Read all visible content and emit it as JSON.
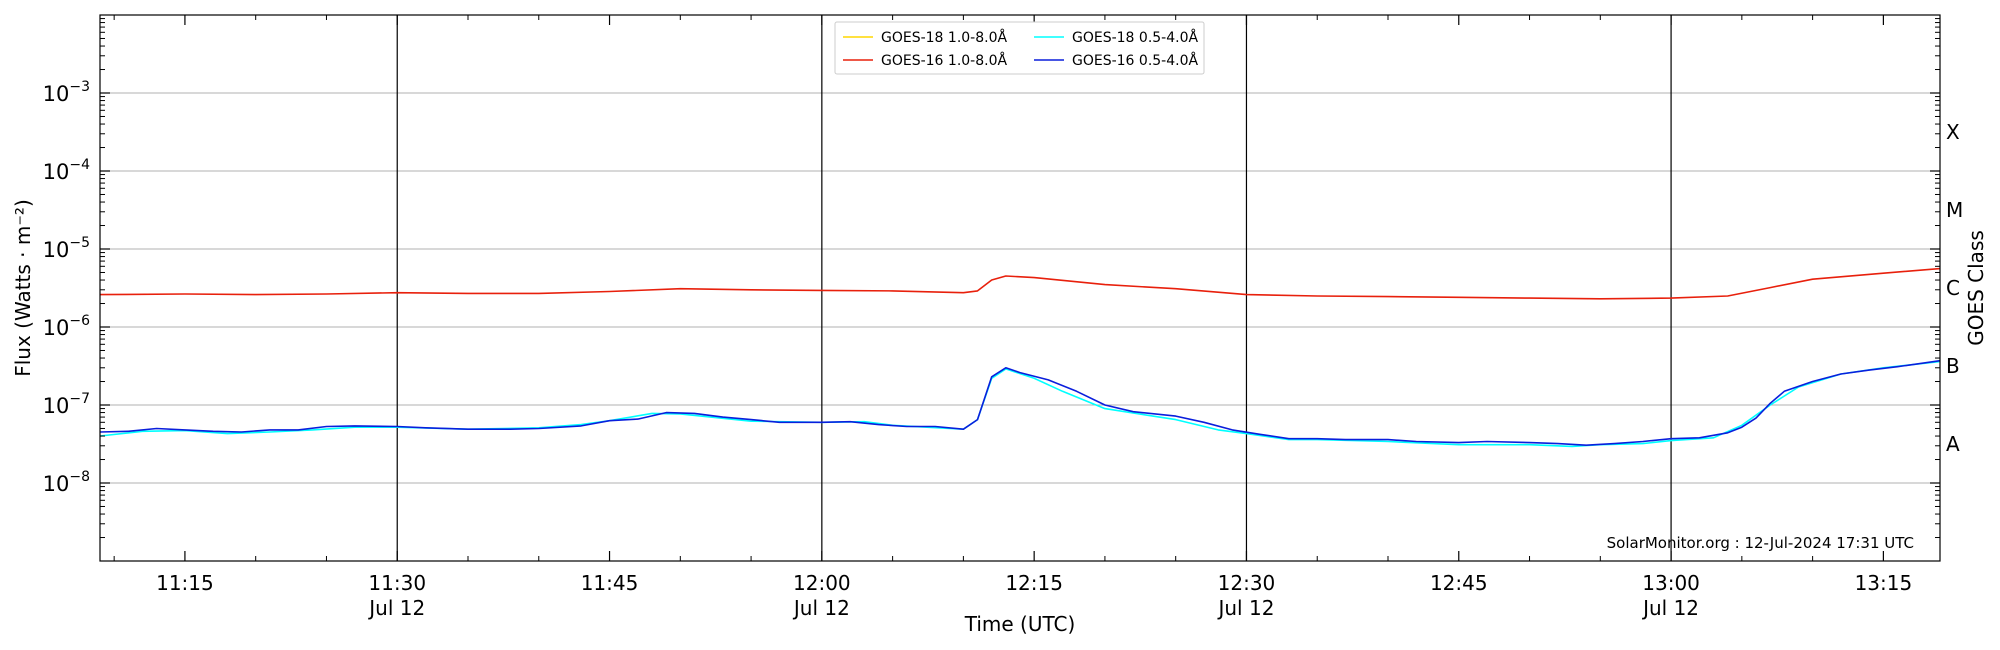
{
  "chart_data": {
    "type": "line",
    "xlabel": "Time (UTC)",
    "ylabel": "Flux (Watts · m⁻²)",
    "y2label": "GOES Class",
    "yscale": "log",
    "ylim": [
      1e-09,
      0.01
    ],
    "x_start": "11:09",
    "x_end": "13:19",
    "xticks": [
      {
        "label": "11:15",
        "sub": ""
      },
      {
        "label": "11:30",
        "sub": "Jul 12"
      },
      {
        "label": "11:45",
        "sub": ""
      },
      {
        "label": "12:00",
        "sub": "Jul 12"
      },
      {
        "label": "12:15",
        "sub": ""
      },
      {
        "label": "12:30",
        "sub": "Jul 12"
      },
      {
        "label": "12:45",
        "sub": ""
      },
      {
        "label": "13:00",
        "sub": "Jul 12"
      },
      {
        "label": "13:15",
        "sub": ""
      }
    ],
    "yticks": [
      {
        "base": "10",
        "exp": "−3",
        "value": 0.001
      },
      {
        "base": "10",
        "exp": "−4",
        "value": 0.0001
      },
      {
        "base": "10",
        "exp": "−5",
        "value": 1e-05
      },
      {
        "base": "10",
        "exp": "−6",
        "value": 1e-06
      },
      {
        "base": "10",
        "exp": "−7",
        "value": 1e-07
      },
      {
        "base": "10",
        "exp": "−8",
        "value": 1e-08
      }
    ],
    "classes": [
      {
        "label": "X",
        "value": 0.000316
      },
      {
        "label": "M",
        "value": 3.16e-05
      },
      {
        "label": "C",
        "value": 3.16e-06
      },
      {
        "label": "B",
        "value": 3.16e-07
      },
      {
        "label": "A",
        "value": 3.16e-08
      }
    ],
    "vlines": [
      "11:30",
      "12:00",
      "12:30",
      "13:00"
    ],
    "grid": "horizontal",
    "legend_position": "top-center",
    "annotation": "SolarMonitor.org : 12-Jul-2024 17:31 UTC",
    "series": [
      {
        "name": "GOES-18 1.0-8.0Å",
        "color": "#ffd700",
        "points": []
      },
      {
        "name": "GOES-16 1.0-8.0Å",
        "color": "#e8200c",
        "points": [
          [
            "11:09",
            2.6e-06
          ],
          [
            "11:15",
            2.65e-06
          ],
          [
            "11:20",
            2.6e-06
          ],
          [
            "11:25",
            2.65e-06
          ],
          [
            "11:30",
            2.75e-06
          ],
          [
            "11:35",
            2.7e-06
          ],
          [
            "11:40",
            2.7e-06
          ],
          [
            "11:45",
            2.85e-06
          ],
          [
            "11:50",
            3.1e-06
          ],
          [
            "11:55",
            3e-06
          ],
          [
            "12:00",
            2.95e-06
          ],
          [
            "12:05",
            2.9e-06
          ],
          [
            "12:10",
            2.75e-06
          ],
          [
            "12:11",
            2.9e-06
          ],
          [
            "12:12",
            4e-06
          ],
          [
            "12:13",
            4.5e-06
          ],
          [
            "12:15",
            4.3e-06
          ],
          [
            "12:20",
            3.5e-06
          ],
          [
            "12:25",
            3.1e-06
          ],
          [
            "12:30",
            2.6e-06
          ],
          [
            "12:35",
            2.5e-06
          ],
          [
            "12:40",
            2.45e-06
          ],
          [
            "12:45",
            2.4e-06
          ],
          [
            "12:50",
            2.35e-06
          ],
          [
            "12:55",
            2.3e-06
          ],
          [
            "13:00",
            2.35e-06
          ],
          [
            "13:04",
            2.5e-06
          ],
          [
            "13:07",
            3.2e-06
          ],
          [
            "13:10",
            4.1e-06
          ],
          [
            "13:15",
            4.9e-06
          ],
          [
            "13:19",
            5.6e-06
          ]
        ]
      },
      {
        "name": "GOES-18 0.5-4.0Å",
        "color": "#00ffff",
        "points": [
          [
            "11:09",
            4e-08
          ],
          [
            "11:12",
            4.6e-08
          ],
          [
            "11:15",
            4.7e-08
          ],
          [
            "11:18",
            4.3e-08
          ],
          [
            "11:21",
            4.5e-08
          ],
          [
            "11:24",
            4.8e-08
          ],
          [
            "11:27",
            5.2e-08
          ],
          [
            "11:30",
            5.2e-08
          ],
          [
            "11:35",
            4.9e-08
          ],
          [
            "11:40",
            5.1e-08
          ],
          [
            "11:43",
            5.6e-08
          ],
          [
            "11:45",
            6.3e-08
          ],
          [
            "11:48",
            7.8e-08
          ],
          [
            "11:50",
            7.7e-08
          ],
          [
            "11:55",
            6.2e-08
          ],
          [
            "12:00",
            6e-08
          ],
          [
            "12:03",
            6.1e-08
          ],
          [
            "12:05",
            5.5e-08
          ],
          [
            "12:10",
            4.9e-08
          ],
          [
            "12:11",
            6.5e-08
          ],
          [
            "12:12",
            2.2e-07
          ],
          [
            "12:13",
            2.9e-07
          ],
          [
            "12:15",
            2.2e-07
          ],
          [
            "12:17",
            1.5e-07
          ],
          [
            "12:20",
            9e-08
          ],
          [
            "12:25",
            6.5e-08
          ],
          [
            "12:28",
            4.8e-08
          ],
          [
            "12:30",
            4.3e-08
          ],
          [
            "12:33",
            3.6e-08
          ],
          [
            "12:35",
            3.6e-08
          ],
          [
            "12:40",
            3.4e-08
          ],
          [
            "12:45",
            3.1e-08
          ],
          [
            "12:50",
            3.1e-08
          ],
          [
            "12:53",
            2.95e-08
          ],
          [
            "12:55",
            3.1e-08
          ],
          [
            "12:58",
            3.2e-08
          ],
          [
            "13:00",
            3.5e-08
          ],
          [
            "13:03",
            3.8e-08
          ],
          [
            "13:05",
            5.5e-08
          ],
          [
            "13:07",
            1e-07
          ],
          [
            "13:09",
            1.7e-07
          ],
          [
            "13:12",
            2.5e-07
          ],
          [
            "13:15",
            3e-07
          ],
          [
            "13:19",
            3.6e-07
          ]
        ]
      },
      {
        "name": "GOES-16 0.5-4.0Å",
        "color": "#0a1edc",
        "points": [
          [
            "11:09",
            4.5e-08
          ],
          [
            "11:11",
            4.6e-08
          ],
          [
            "11:13",
            5e-08
          ],
          [
            "11:15",
            4.8e-08
          ],
          [
            "11:17",
            4.6e-08
          ],
          [
            "11:19",
            4.5e-08
          ],
          [
            "11:21",
            4.8e-08
          ],
          [
            "11:23",
            4.8e-08
          ],
          [
            "11:25",
            5.3e-08
          ],
          [
            "11:27",
            5.4e-08
          ],
          [
            "11:30",
            5.3e-08
          ],
          [
            "11:32",
            5.1e-08
          ],
          [
            "11:35",
            4.9e-08
          ],
          [
            "11:38",
            4.9e-08
          ],
          [
            "11:40",
            5e-08
          ],
          [
            "11:43",
            5.4e-08
          ],
          [
            "11:45",
            6.3e-08
          ],
          [
            "11:47",
            6.6e-08
          ],
          [
            "11:49",
            8e-08
          ],
          [
            "11:51",
            7.8e-08
          ],
          [
            "11:53",
            7e-08
          ],
          [
            "11:55",
            6.5e-08
          ],
          [
            "11:57",
            6e-08
          ],
          [
            "12:00",
            6e-08
          ],
          [
            "12:02",
            6.1e-08
          ],
          [
            "12:04",
            5.6e-08
          ],
          [
            "12:06",
            5.3e-08
          ],
          [
            "12:08",
            5.3e-08
          ],
          [
            "12:10",
            4.9e-08
          ],
          [
            "12:11",
            6.5e-08
          ],
          [
            "12:12",
            2.3e-07
          ],
          [
            "12:13",
            3e-07
          ],
          [
            "12:14",
            2.6e-07
          ],
          [
            "12:16",
            2.1e-07
          ],
          [
            "12:18",
            1.5e-07
          ],
          [
            "12:20",
            1e-07
          ],
          [
            "12:22",
            8.2e-08
          ],
          [
            "12:25",
            7.2e-08
          ],
          [
            "12:27",
            6e-08
          ],
          [
            "12:29",
            4.8e-08
          ],
          [
            "12:31",
            4.2e-08
          ],
          [
            "12:33",
            3.7e-08
          ],
          [
            "12:35",
            3.7e-08
          ],
          [
            "12:37",
            3.6e-08
          ],
          [
            "12:40",
            3.6e-08
          ],
          [
            "12:42",
            3.4e-08
          ],
          [
            "12:45",
            3.3e-08
          ],
          [
            "12:47",
            3.4e-08
          ],
          [
            "12:50",
            3.3e-08
          ],
          [
            "12:52",
            3.2e-08
          ],
          [
            "12:54",
            3.05e-08
          ],
          [
            "12:56",
            3.2e-08
          ],
          [
            "12:58",
            3.4e-08
          ],
          [
            "13:00",
            3.7e-08
          ],
          [
            "13:02",
            3.8e-08
          ],
          [
            "13:04",
            4.4e-08
          ],
          [
            "13:05",
            5.2e-08
          ],
          [
            "13:06",
            6.8e-08
          ],
          [
            "13:07",
            1.05e-07
          ],
          [
            "13:08",
            1.5e-07
          ],
          [
            "13:10",
            2e-07
          ],
          [
            "13:12",
            2.5e-07
          ],
          [
            "13:14",
            2.8e-07
          ],
          [
            "13:16",
            3.1e-07
          ],
          [
            "13:19",
            3.7e-07
          ]
        ]
      }
    ]
  }
}
